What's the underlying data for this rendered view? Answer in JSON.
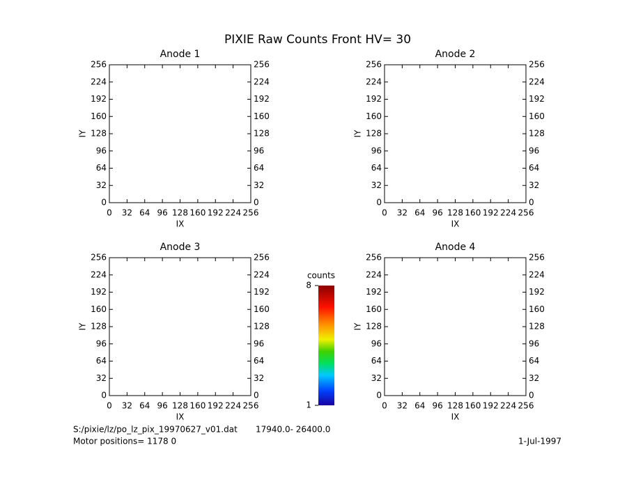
{
  "title": "PIXIE Raw Counts Front HV= 30",
  "chart_data": [
    {
      "type": "heatmap",
      "title": "Anode 1",
      "xlabel": "IX",
      "ylabel": "IY",
      "xlim": [
        0,
        256
      ],
      "ylim": [
        0,
        256
      ],
      "xticks": [
        0,
        32,
        64,
        96,
        128,
        160,
        192,
        224,
        256
      ],
      "yticks": [
        0,
        32,
        64,
        96,
        128,
        160,
        192,
        224,
        256
      ],
      "y2lim": [
        0,
        256
      ],
      "y2ticks": [
        0,
        32,
        64,
        96,
        128,
        160,
        192,
        224,
        256
      ]
    },
    {
      "type": "heatmap",
      "title": "Anode 2",
      "xlabel": "IX",
      "ylabel": "IY",
      "xlim": [
        0,
        256
      ],
      "ylim": [
        0,
        256
      ],
      "xticks": [
        0,
        32,
        64,
        96,
        128,
        160,
        192,
        224,
        256
      ],
      "yticks": [
        0,
        32,
        64,
        96,
        128,
        160,
        192,
        224,
        256
      ],
      "y2lim": [
        0,
        256
      ],
      "y2ticks": [
        0,
        32,
        64,
        96,
        128,
        160,
        192,
        224,
        256
      ]
    },
    {
      "type": "heatmap",
      "title": "Anode 3",
      "xlabel": "IX",
      "ylabel": "IY",
      "xlim": [
        0,
        256
      ],
      "ylim": [
        0,
        256
      ],
      "xticks": [
        0,
        32,
        64,
        96,
        128,
        160,
        192,
        224,
        256
      ],
      "yticks": [
        0,
        32,
        64,
        96,
        128,
        160,
        192,
        224,
        256
      ],
      "y2lim": [
        0,
        256
      ],
      "y2ticks": [
        0,
        32,
        64,
        96,
        128,
        160,
        192,
        224,
        256
      ]
    },
    {
      "type": "heatmap",
      "title": "Anode 4",
      "xlabel": "IX",
      "ylabel": "IY",
      "xlim": [
        0,
        256
      ],
      "ylim": [
        0,
        256
      ],
      "xticks": [
        0,
        32,
        64,
        96,
        128,
        160,
        192,
        224,
        256
      ],
      "yticks": [
        0,
        32,
        64,
        96,
        128,
        160,
        192,
        224,
        256
      ],
      "y2lim": [
        0,
        256
      ],
      "y2ticks": [
        0,
        32,
        64,
        96,
        128,
        160,
        192,
        224,
        256
      ]
    }
  ],
  "colorbar": {
    "label": "counts",
    "lim": [
      1,
      8
    ],
    "ticks": [
      1,
      8
    ]
  },
  "footer": {
    "file": "S:/pixie/lz/po_lz_pix_19970627_v01.dat",
    "range": "17940.0- 26400.0",
    "motor": "Motor positions= 1178 0",
    "date": "1-Jul-1997"
  }
}
